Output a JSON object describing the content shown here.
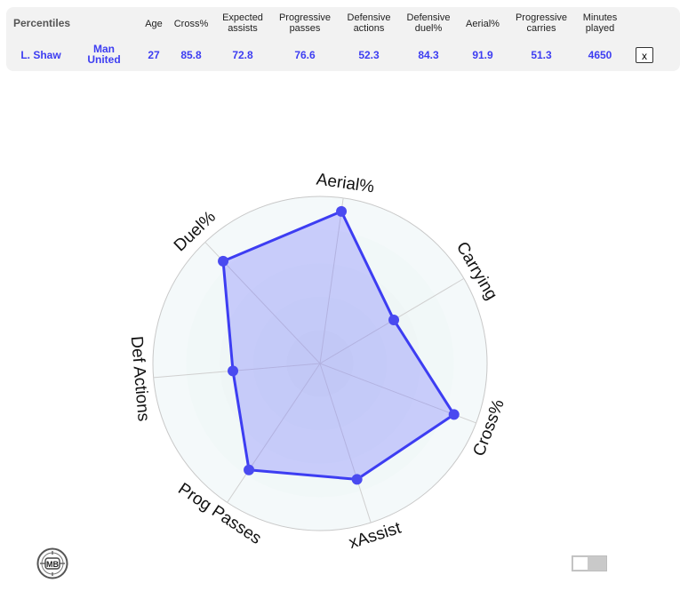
{
  "table": {
    "headers": {
      "label": "Percentiles",
      "age": "Age",
      "cross": "Cross%",
      "xa_1": "Expected",
      "xa_2": "assists",
      "pp_1": "Progressive",
      "pp_2": "passes",
      "da_1": "Defensive",
      "da_2": "actions",
      "dd_1": "Defensive",
      "dd_2": "duel%",
      "aerial": "Aerial%",
      "pc_1": "Progressive",
      "pc_2": "carries",
      "mp_1": "Minutes",
      "mp_2": "played"
    },
    "row": {
      "player": "L. Shaw",
      "team_1": "Man",
      "team_2": "United",
      "age": "27",
      "cross": "85.8",
      "expected_assists": "72.8",
      "progressive_passes": "76.6",
      "defensive_actions": "52.3",
      "defensive_duel": "84.3",
      "aerial": "91.9",
      "progressive_carries": "51.3",
      "minutes_played": "4650"
    },
    "close_label": "x"
  },
  "chart_data": {
    "type": "radar",
    "categories": [
      "Aerial%",
      "Carrying",
      "Cross%",
      "xAssist",
      "Prog Passes",
      "Def Actions",
      "Duel%"
    ],
    "values": [
      91.9,
      51.3,
      85.8,
      72.8,
      76.6,
      52.3,
      84.3
    ],
    "rlim": [
      0,
      100
    ],
    "rings": [
      20,
      40,
      60,
      80,
      100
    ],
    "colors": {
      "fill": "#7b7bff",
      "line": "#3d3df2",
      "point": "#4a4af0",
      "ring_fill": "#f1f8f8",
      "grid": "#d0d0d0"
    }
  },
  "logo_text": "MB",
  "toggle_state": "off"
}
